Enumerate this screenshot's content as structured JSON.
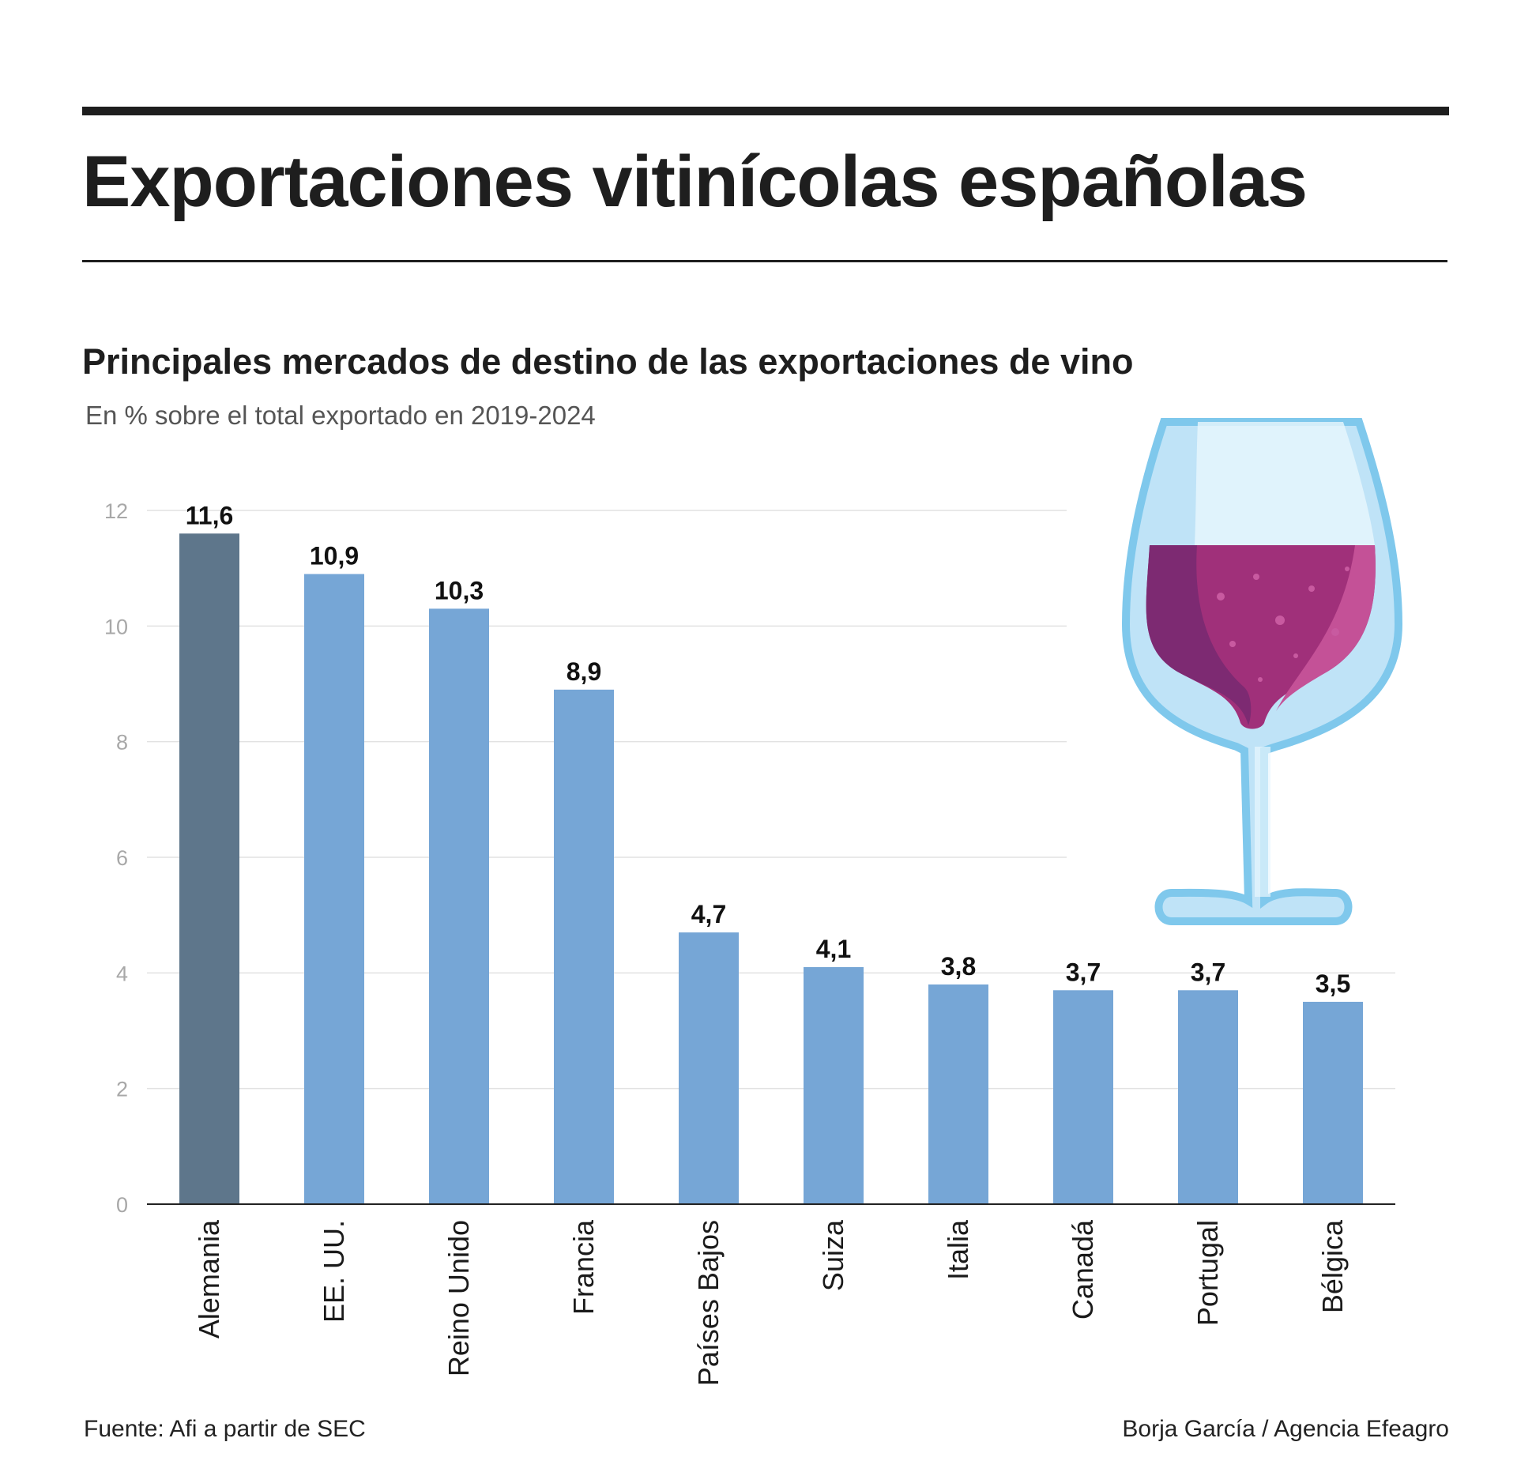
{
  "header": {
    "title": "Exportaciones vitinícolas españolas",
    "subtitle": "Principales mercados de destino de las exportaciones de vino",
    "note": "En % sobre el total exportado en 2019-2024"
  },
  "footer": {
    "source": "Fuente: Afi a partir de SEC",
    "credit": "Borja García / Agencia Efeagro"
  },
  "illustration": {
    "icon": "wine-glass-icon"
  },
  "colors": {
    "highlight": "#5e768b",
    "bar": "#76a6d6",
    "grid": "#e2e2e2",
    "axis": "#222222",
    "wine": "#a0307a"
  },
  "chart_data": {
    "type": "bar",
    "categories": [
      "Alemania",
      "EE. UU.",
      "Reino Unido",
      "Francia",
      "Países Bajos",
      "Suiza",
      "Italia",
      "Canadá",
      "Portugal",
      "Bélgica"
    ],
    "values": [
      11.6,
      10.9,
      10.3,
      8.9,
      4.7,
      4.1,
      3.8,
      3.7,
      3.7,
      3.5
    ],
    "data_labels": [
      "11,6",
      "10,9",
      "10,3",
      "8,9",
      "4,7",
      "4,1",
      "3,8",
      "3,7",
      "3,7",
      "3,5"
    ],
    "highlighted_category": "Alemania",
    "ylim": [
      0,
      12
    ],
    "yticks": [
      0,
      2,
      4,
      6,
      8,
      10,
      12
    ],
    "grid": true,
    "legend": "none"
  }
}
